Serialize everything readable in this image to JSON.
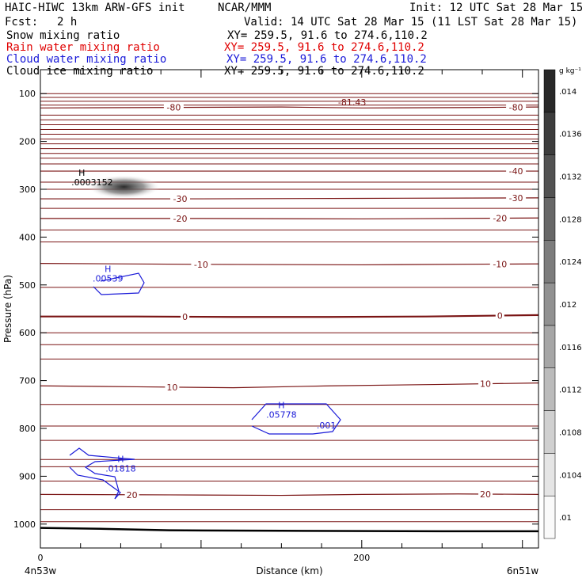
{
  "header": {
    "model": "HAIC-HIWC 13km ARW-GFS init",
    "org": "NCAR/MMM",
    "init": "Init: 12 UTC Sat 28 Mar 15",
    "fcst_label": "Fcst:",
    "fcst_value": "2 h",
    "valid": "Valid: 14 UTC Sat 28 Mar 15 (11 LST Sat 28 Mar 15)"
  },
  "fields": [
    {
      "label": "Snow mixing ratio",
      "xy": "XY= 259.5, 91.6 to 274.6,110.2",
      "color": "#000000"
    },
    {
      "label": "Rain water mixing ratio",
      "xy": "XY= 259.5, 91.6 to 274.6,110.2",
      "color": "#e00000"
    },
    {
      "label": "Cloud water mixing ratio",
      "xy": "XY= 259.5, 91.6 to 274.6,110.2",
      "color": "#1a1ad8"
    },
    {
      "label": "Cloud ice mixing ratio",
      "xy": "XY= 259.5, 91.6 to 274.6,110.2",
      "color": "#000000"
    }
  ],
  "chart_data": {
    "type": "contour",
    "xlabel": "Distance (km)",
    "ylabel": "Pressure (hPa)",
    "x_ticks": [
      0,
      200
    ],
    "xlim": [
      0,
      310
    ],
    "x_end_labels": {
      "left": "4n53w",
      "right": "6n51w"
    },
    "y_ticks": [
      100,
      200,
      300,
      400,
      500,
      600,
      700,
      800,
      900,
      1000
    ],
    "ylim": [
      50,
      1050
    ],
    "colorbar": {
      "unit": "g kg⁻¹",
      "ticks": [
        ".01",
        ".0104",
        ".0108",
        ".0112",
        ".0116",
        ".012",
        ".0124",
        ".0128",
        ".0132",
        ".0136",
        ".014"
      ]
    },
    "temperature_contours": {
      "color": "#7a1414",
      "levels": [
        {
          "value": -80,
          "x": [
            0,
            70,
            150,
            200,
            270,
            310
          ],
          "y": [
            130,
            129,
            128,
            130,
            129,
            128
          ],
          "labels": [
            {
              "text": "-80",
              "x": 83
            },
            {
              "text": "-80",
              "x": 296
            }
          ]
        },
        {
          "value": -40,
          "x": [
            0,
            150,
            310
          ],
          "y": [
            262,
            262,
            262
          ],
          "labels": [
            {
              "text": "-40",
              "x": 296
            }
          ]
        },
        {
          "value": -30,
          "x": [
            0,
            100,
            200,
            310
          ],
          "y": [
            320,
            320,
            319,
            318
          ],
          "labels": [
            {
              "text": "-30",
              "x": 87
            },
            {
              "text": "-30",
              "x": 296
            }
          ]
        },
        {
          "value": -20,
          "x": [
            0,
            100,
            200,
            310
          ],
          "y": [
            361,
            361,
            362,
            360
          ],
          "labels": [
            {
              "text": "-20",
              "x": 87
            },
            {
              "text": "-20",
              "x": 286
            }
          ]
        },
        {
          "value": -10,
          "x": [
            0,
            100,
            200,
            310
          ],
          "y": [
            455,
            457,
            458,
            456
          ],
          "labels": [
            {
              "text": "-10",
              "x": 100
            },
            {
              "text": "-10",
              "x": 286
            }
          ]
        },
        {
          "value": 0,
          "x": [
            0,
            60,
            120,
            180,
            240,
            310
          ],
          "y": [
            566,
            566,
            567,
            567,
            566,
            563
          ],
          "labels": [
            {
              "text": "0",
              "x": 90
            },
            {
              "text": "0",
              "x": 286
            }
          ]
        },
        {
          "value": 10,
          "x": [
            0,
            60,
            120,
            180,
            250,
            310
          ],
          "y": [
            711,
            713,
            715,
            711,
            708,
            705
          ],
          "labels": [
            {
              "text": "10",
              "x": 82
            },
            {
              "text": "10",
              "x": 277
            }
          ]
        },
        {
          "value": 20,
          "x": [
            0,
            80,
            150,
            200,
            260,
            310
          ],
          "y": [
            938,
            939,
            940,
            938,
            937,
            938
          ],
          "labels": [
            {
              "text": "20",
              "x": 57
            },
            {
              "text": "20",
              "x": 277
            }
          ]
        }
      ],
      "other_labels": [
        {
          "text": "-81.43",
          "x": 194,
          "p": 118
        }
      ],
      "filler_levels": [
        100,
        108,
        116,
        124,
        145,
        155,
        165,
        175,
        185,
        195,
        205,
        215,
        225,
        235,
        247,
        285,
        300,
        340,
        385,
        410,
        505,
        600,
        625,
        655,
        750,
        795,
        825,
        865,
        880,
        910,
        970,
        995
      ]
    },
    "surface_line": {
      "x": [
        0,
        40,
        80,
        150,
        250,
        310
      ],
      "y": [
        1008,
        1010,
        1013,
        1014,
        1015,
        1015
      ],
      "color": "#000000"
    },
    "cloud_ice_max": {
      "label_h": "H",
      "value": ".0003152",
      "x": 40,
      "p": 292
    },
    "cloud_water": {
      "color": "#1a1ad8",
      "maxima": [
        {
          "label_h": "H",
          "value": ".00539",
          "x": 42,
          "p": 493
        },
        {
          "label_h": "H",
          "value": ".05778",
          "x": 150,
          "p": 778
        },
        {
          "label_h": "H",
          "value": ".01818",
          "x": 50,
          "p": 890
        }
      ],
      "contour_labels": [
        {
          "text": ".001",
          "x": 178,
          "p": 793
        }
      ]
    }
  }
}
